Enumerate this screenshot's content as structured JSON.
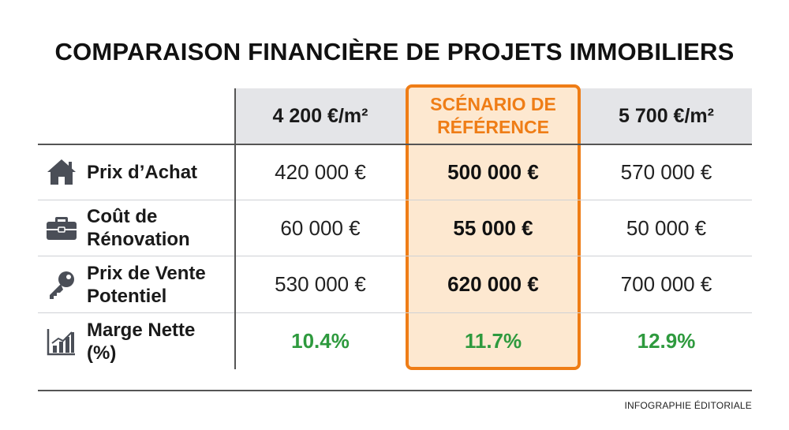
{
  "title": "COMPARAISON FINANCIÈRE DE PROJETS IMMOBILIERS",
  "footer": "INFOGRAPHIE ÉDITORIALE",
  "colors": {
    "highlight_border": "#ef7d16",
    "highlight_fill": "#fde8d0",
    "positive": "#2e9a3e",
    "header_bg": "#e4e5e8"
  },
  "columns": [
    {
      "label": "4 200 €/m²"
    },
    {
      "label_line1": "SCÉNARIO DE",
      "label_line2": "RÉFÉRENCE",
      "highlighted": true
    },
    {
      "label": "5 700 €/m²"
    }
  ],
  "rows": [
    {
      "icon": "house-icon",
      "label_line1": "Prix d’Achat",
      "label_line2": "",
      "values": [
        "420 000 €",
        "500 000 €",
        "570 000 €"
      ]
    },
    {
      "icon": "briefcase-icon",
      "label_line1": "Coût de",
      "label_line2": "Rénovation",
      "values": [
        "60 000 €",
        "55 000 €",
        "50 000 €"
      ]
    },
    {
      "icon": "key-icon",
      "label_line1": "Prix de Vente",
      "label_line2": "Potentiel",
      "values": [
        "530 000 €",
        "620 000 €",
        "700 000 €"
      ]
    },
    {
      "icon": "bar-chart-icon",
      "label_line1": "Marge Nette",
      "label_line2": "(%)",
      "values": [
        "10.4%",
        "11.7%",
        "12.9%"
      ]
    }
  ],
  "chart_data": {
    "type": "table",
    "title": "COMPARAISON FINANCIÈRE DE PROJETS IMMOBILIERS",
    "column_headers": [
      "4 200 €/m²",
      "SCÉNARIO DE RÉFÉRENCE",
      "5 700 €/m²"
    ],
    "row_headers": [
      "Prix d’Achat",
      "Coût de Rénovation",
      "Prix de Vente Potentiel",
      "Marge Nette (%)"
    ],
    "cells": [
      [
        "420 000 €",
        "500 000 €",
        "570 000 €"
      ],
      [
        "60 000 €",
        "55 000 €",
        "50 000 €"
      ],
      [
        "530 000 €",
        "620 000 €",
        "700 000 €"
      ],
      [
        "10.4%",
        "11.7%",
        "12.9%"
      ]
    ],
    "highlighted_column": "SCÉNARIO DE RÉFÉRENCE"
  }
}
